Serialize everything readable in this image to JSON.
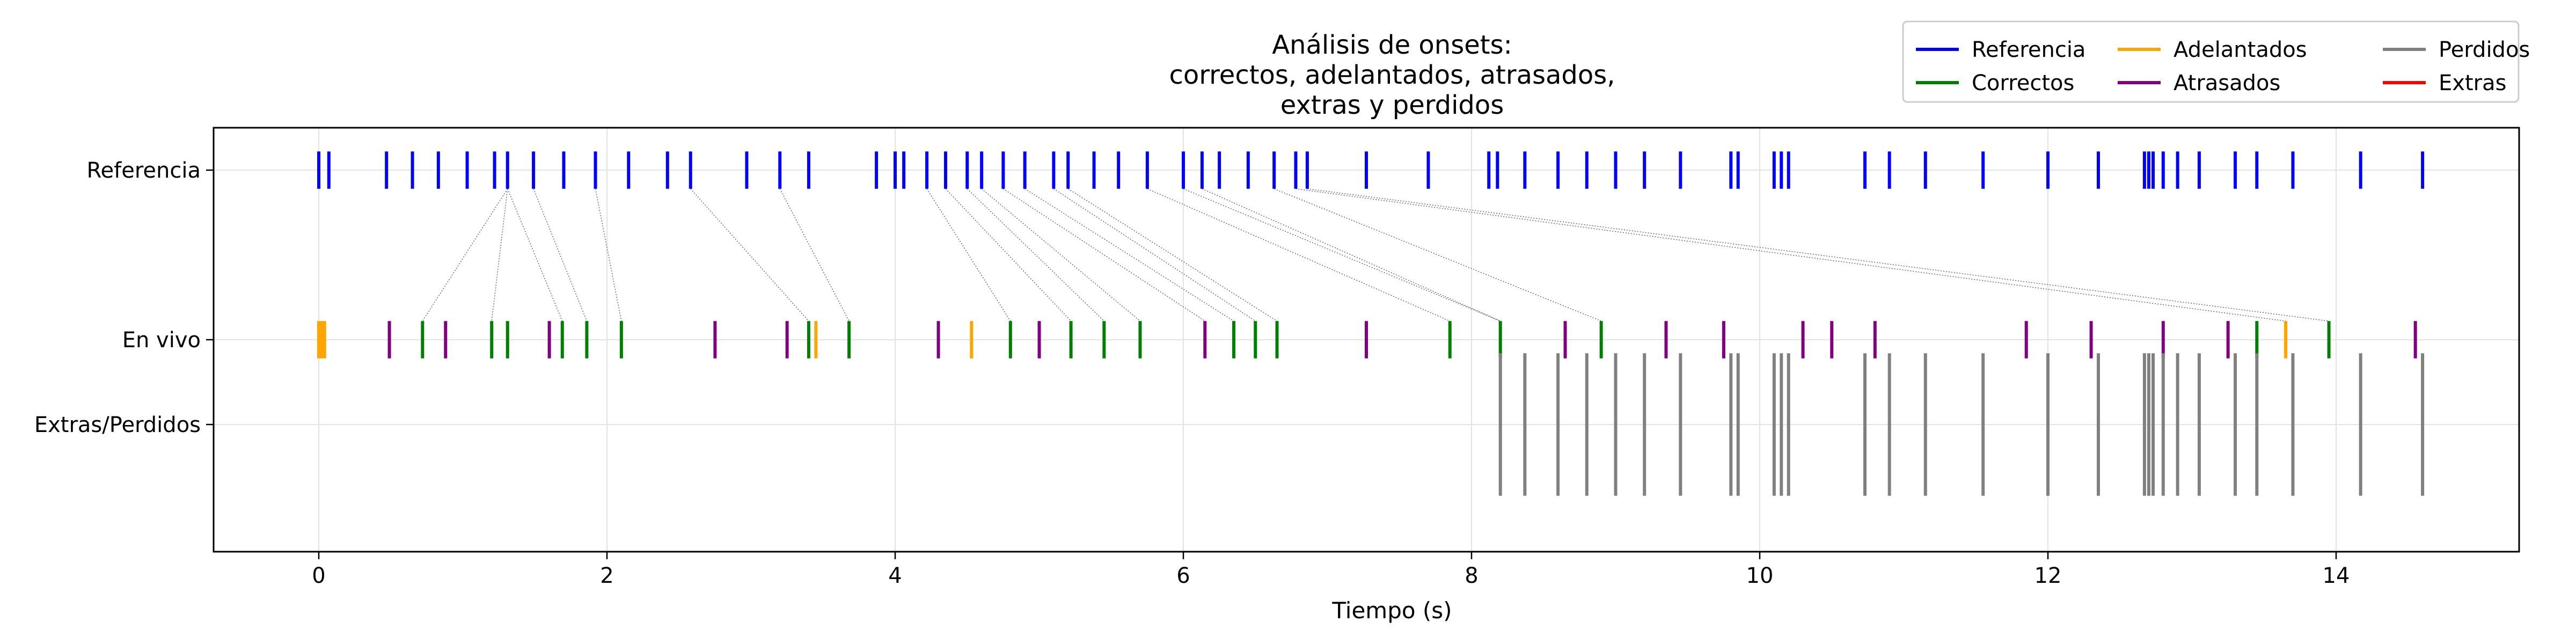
{
  "chart_data": {
    "type": "event-raster",
    "title": [
      "Análisis de onsets:",
      "correctos, adelantados, atrasados,",
      "extras y perdidos"
    ],
    "xlabel": "Tiempo (s)",
    "ylabel": "",
    "xlim": [
      -0.73,
      15.27
    ],
    "x_ticks": [
      0,
      2,
      4,
      6,
      8,
      10,
      12,
      14
    ],
    "grid": true,
    "legend_position": "top-right",
    "rows": [
      {
        "label": "Referencia",
        "value": 1.0
      },
      {
        "label": "En vivo",
        "value": 0.0
      },
      {
        "label": "Extras/Perdidos",
        "value": -0.5
      }
    ],
    "colors": {
      "Referencia": "#0000ff",
      "Correctos": "#008000",
      "Adelantados": "#ffa500",
      "Atrasados": "#800080",
      "Perdidos": "#808080",
      "Extras": "#ff0000"
    },
    "legend": [
      {
        "key": "Referencia",
        "label": "Referencia"
      },
      {
        "key": "Correctos",
        "label": "Correctos"
      },
      {
        "key": "Adelantados",
        "label": "Adelantados"
      },
      {
        "key": "Atrasados",
        "label": "Atrasados"
      },
      {
        "key": "Perdidos",
        "label": "Perdidos"
      },
      {
        "key": "Extras",
        "label": "Extras"
      }
    ],
    "series": [
      {
        "name": "Referencia",
        "row": "Referencia",
        "color": "#0000ff",
        "x": [
          0.0,
          0.07,
          0.47,
          0.65,
          0.83,
          1.03,
          1.22,
          1.31,
          1.49,
          1.7,
          1.92,
          2.15,
          2.42,
          2.58,
          2.97,
          3.2,
          3.4,
          3.87,
          4.0,
          4.06,
          4.22,
          4.35,
          4.5,
          4.6,
          4.75,
          4.9,
          5.1,
          5.2,
          5.38,
          5.55,
          5.75,
          6.0,
          6.13,
          6.25,
          6.45,
          6.63,
          6.78,
          6.86,
          7.27,
          7.7,
          8.12,
          8.18,
          8.37,
          8.6,
          8.8,
          9.0,
          9.2,
          9.45,
          9.8,
          9.85,
          10.1,
          10.15,
          10.2,
          10.73,
          10.9,
          11.15,
          11.55,
          12.0,
          12.35,
          12.67,
          12.7,
          12.73,
          12.8,
          12.9,
          13.05,
          13.3,
          13.45,
          13.7,
          14.17,
          14.6
        ]
      },
      {
        "name": "Correctos",
        "row": "En vivo",
        "color": "#008000",
        "x": [
          0.72,
          1.2,
          1.31,
          1.69,
          1.86,
          2.1,
          3.4,
          3.68,
          4.8,
          5.22,
          5.45,
          5.7,
          6.35,
          6.5,
          6.65,
          7.85,
          8.2,
          8.9,
          13.45,
          13.95
        ]
      },
      {
        "name": "Adelantados",
        "row": "En vivo",
        "color": "#ffa500",
        "x": [
          0.0,
          0.02,
          0.04,
          3.45,
          4.53,
          13.65
        ]
      },
      {
        "name": "Atrasados",
        "row": "En vivo",
        "color": "#800080",
        "x": [
          0.49,
          0.88,
          1.6,
          2.75,
          3.25,
          4.3,
          5.0,
          6.15,
          7.27,
          8.65,
          9.35,
          9.75,
          10.3,
          10.5,
          10.8,
          11.85,
          12.3,
          12.8,
          13.25,
          14.55
        ]
      },
      {
        "name": "Perdidos",
        "row": "Extras/Perdidos",
        "color": "#808080",
        "x": [
          8.2,
          8.37,
          8.6,
          8.8,
          9.0,
          9.2,
          9.45,
          9.8,
          9.85,
          10.1,
          10.15,
          10.2,
          10.73,
          10.9,
          11.15,
          11.55,
          12.0,
          12.35,
          12.67,
          12.7,
          12.73,
          12.8,
          12.9,
          13.05,
          13.3,
          13.45,
          13.7,
          14.17,
          14.6
        ]
      },
      {
        "name": "Extras",
        "row": "Extras/Perdidos",
        "color": "#ff0000",
        "x": []
      }
    ],
    "matches": [
      [
        1.31,
        0.72
      ],
      [
        1.31,
        1.2
      ],
      [
        1.31,
        1.69
      ],
      [
        1.49,
        1.86
      ],
      [
        1.92,
        2.1
      ],
      [
        2.58,
        3.4
      ],
      [
        3.2,
        3.68
      ],
      [
        4.22,
        4.8
      ],
      [
        4.35,
        5.22
      ],
      [
        4.5,
        5.45
      ],
      [
        4.6,
        5.7
      ],
      [
        4.75,
        6.15
      ],
      [
        4.9,
        6.35
      ],
      [
        5.1,
        6.5
      ],
      [
        5.2,
        6.65
      ],
      [
        5.75,
        7.85
      ],
      [
        6.0,
        8.2
      ],
      [
        6.13,
        8.2
      ],
      [
        6.63,
        8.9
      ],
      [
        6.78,
        13.65
      ],
      [
        6.86,
        13.95
      ]
    ]
  }
}
